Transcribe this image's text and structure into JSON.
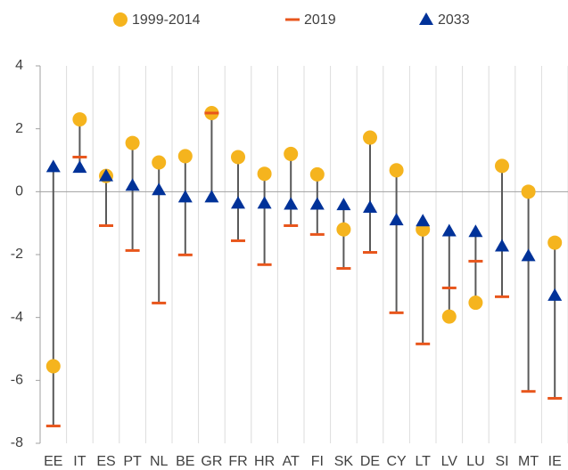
{
  "chart_data": {
    "type": "range_dot",
    "categories": [
      "EE",
      "IT",
      "ES",
      "PT",
      "NL",
      "BE",
      "GR",
      "FR",
      "HR",
      "AT",
      "FI",
      "SK",
      "DE",
      "CY",
      "LT",
      "LV",
      "LU",
      "SI",
      "MT",
      "IE"
    ],
    "series": [
      {
        "name": "1999-2014",
        "color": "#f5b41e",
        "marker": "circle",
        "values": [
          -5.55,
          2.3,
          0.5,
          1.55,
          0.93,
          1.13,
          2.5,
          1.1,
          0.57,
          1.2,
          0.55,
          -1.2,
          1.72,
          0.68,
          -1.2,
          -3.97,
          -3.53,
          0.82,
          0,
          -1.62
        ]
      },
      {
        "name": "2019",
        "color": "#e8561c",
        "marker": "dash",
        "values": [
          -7.45,
          1.1,
          -1.08,
          -1.87,
          -3.54,
          -2.01,
          2.5,
          -1.56,
          -2.32,
          -1.08,
          -1.36,
          -2.44,
          -1.93,
          -3.85,
          -4.84,
          -3.06,
          -2.21,
          -3.34,
          -6.35,
          -6.57
        ]
      },
      {
        "name": "2033",
        "color": "#003299",
        "marker": "triangle",
        "values": [
          0.79,
          0.77,
          0.5,
          0.2,
          0.06,
          -0.17,
          -0.17,
          -0.37,
          -0.37,
          -0.4,
          -0.4,
          -0.42,
          -0.5,
          -0.9,
          -0.93,
          -1.25,
          -1.27,
          -1.73,
          -2.04,
          -3.3
        ]
      }
    ],
    "range_color": "#595959",
    "ylim": [
      -8,
      4
    ],
    "yticks": [
      -8,
      -6,
      -4,
      -2,
      0,
      2,
      4
    ],
    "legend": "top"
  }
}
